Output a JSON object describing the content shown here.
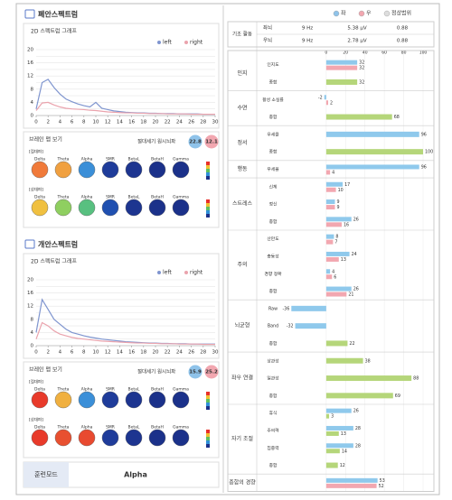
{
  "left": {
    "sections": [
      {
        "title": "폐안스펙트럼",
        "chart": {
          "type": "line",
          "title": "2D 스펙트럼 그래프",
          "x": [
            0,
            1,
            2,
            3,
            4,
            5,
            6,
            7,
            8,
            9,
            10,
            11,
            12,
            13,
            14,
            15,
            16,
            17,
            18,
            19,
            20,
            21,
            22,
            23,
            24,
            25,
            26,
            27,
            28,
            29,
            30
          ],
          "series": [
            {
              "name": "left",
              "color": "#7f95cf",
              "values": [
                2,
                10,
                11,
                8.5,
                6.5,
                5,
                4.2,
                3.5,
                3,
                2.6,
                4,
                2.2,
                1.8,
                1.4,
                1.2,
                1,
                0.9,
                0.8,
                0.8,
                0.7,
                0.7,
                0.6,
                0.6,
                0.6,
                0.5,
                0.5,
                0.5,
                0.5,
                0.4,
                0.4,
                0.4
              ]
            },
            {
              "name": "right",
              "color": "#eaa3ad",
              "values": [
                1.5,
                3.8,
                4,
                3.2,
                2.6,
                2.2,
                2,
                1.9,
                1.8,
                1.6,
                1.5,
                1.3,
                1.1,
                1,
                0.9,
                0.8,
                0.8,
                0.7,
                0.7,
                0.6,
                0.6,
                0.6,
                0.5,
                0.5,
                0.5,
                0.5,
                0.4,
                0.4,
                0.4,
                0.4,
                0.4
              ]
            }
          ],
          "xlim": [
            0,
            30
          ],
          "ylim": [
            0,
            20
          ],
          "xticks": [
            0,
            2,
            4,
            6,
            8,
            10,
            12,
            14,
            16,
            18,
            20,
            22,
            24,
            26,
            28,
            30
          ],
          "yticks": [
            0,
            2,
            4,
            6,
            8,
            10,
            12,
            14,
            16,
            18,
            20
          ],
          "grid": true
        },
        "brain": {
          "title": "브레인 맵 보기",
          "power_title": "절대세기 원시뇌파",
          "power_values": [
            22.8,
            12.1
          ],
          "power_colors": [
            "#8fc3ea",
            "#f2a7b0"
          ],
          "bands": [
            "Delta",
            "Theta",
            "Alpha",
            "SMR",
            "BetaL",
            "BetaH",
            "Gamma"
          ],
          "rows": [
            {
              "label": "[절대파]",
              "colors": [
                "#f07a3a",
                "#f0a040",
                "#3b8fd8",
                "#1f3c9a",
                "#1d3590",
                "#1b318a",
                "#1b318a"
              ]
            },
            {
              "label": "[상대파]",
              "colors": [
                "#f0c040",
                "#8fcf60",
                "#58c080",
                "#2050b0",
                "#1d3590",
                "#1b318a",
                "#1b318a"
              ]
            }
          ]
        }
      },
      {
        "title": "개안스펙트럼",
        "chart": {
          "type": "line",
          "title": "2D 스펙트럼 그래프",
          "x": [
            0,
            1,
            2,
            3,
            4,
            5,
            6,
            7,
            8,
            9,
            10,
            11,
            12,
            13,
            14,
            15,
            16,
            17,
            18,
            19,
            20,
            21,
            22,
            23,
            24,
            25,
            26,
            27,
            28,
            29,
            30
          ],
          "series": [
            {
              "name": "left",
              "color": "#7f95cf",
              "values": [
                4,
                14,
                11,
                8,
                6.5,
                5,
                4,
                3.5,
                3,
                2.6,
                2.3,
                2,
                1.8,
                1.6,
                1.4,
                1.2,
                1.1,
                1,
                0.9,
                0.8,
                0.8,
                0.7,
                0.7,
                0.6,
                0.6,
                0.6,
                0.5,
                0.5,
                0.5,
                0.5,
                0.5
              ]
            },
            {
              "name": "right",
              "color": "#eaa3ad",
              "values": [
                2,
                7,
                6,
                4.5,
                3.5,
                3,
                2.5,
                2.2,
                2,
                1.8,
                1.6,
                1.4,
                1.3,
                1.2,
                1.1,
                1,
                0.9,
                0.8,
                0.8,
                0.7,
                0.7,
                0.6,
                0.6,
                0.6,
                0.5,
                0.5,
                0.5,
                0.5,
                0.4,
                0.4,
                0.4
              ]
            }
          ],
          "xlim": [
            0,
            30
          ],
          "ylim": [
            0,
            20
          ],
          "xticks": [
            0,
            2,
            4,
            6,
            8,
            10,
            12,
            14,
            16,
            18,
            20,
            22,
            24,
            26,
            28,
            30
          ],
          "yticks": [
            0,
            2,
            4,
            6,
            8,
            10,
            12,
            14,
            16,
            18,
            20
          ],
          "grid": true
        },
        "brain": {
          "title": "브레인 맵 보기",
          "power_title": "절대세기 원시뇌파",
          "power_values": [
            15.9,
            25.2
          ],
          "power_colors": [
            "#8fc3ea",
            "#f2a7b0"
          ],
          "bands": [
            "Delta",
            "Theta",
            "Alpha",
            "SMR",
            "BetaL",
            "BetaH",
            "Gamma"
          ],
          "rows": [
            {
              "label": "[절대파]",
              "colors": [
                "#e83a2a",
                "#f0b040",
                "#3b8fd8",
                "#1f3c9a",
                "#1d3590",
                "#1b318a",
                "#1b318a"
              ]
            },
            {
              "label": "[상대파]",
              "colors": [
                "#e83a2a",
                "#e85030",
                "#e84a30",
                "#1f3c9a",
                "#1d3590",
                "#1b318a",
                "#1b318a"
              ]
            }
          ]
        }
      }
    ],
    "mode": {
      "label": "훈련모드",
      "value": "Alpha"
    }
  },
  "right": {
    "legend": [
      {
        "name": "좌",
        "color": "#8fc3ea"
      },
      {
        "name": "우",
        "color": "#f2a7b0"
      },
      {
        "name": "정상범위",
        "color": "#dddddd"
      }
    ],
    "basic": {
      "label": "기초 활동",
      "rows": [
        [
          "좌뇌",
          "9 Hz",
          "5.38 µV",
          "0.88"
        ],
        [
          "우뇌",
          "9 Hz",
          "2.78 µV",
          "0.88"
        ]
      ]
    },
    "bars": {
      "colors": {
        "left": "#8fc9ec",
        "right": "#f2a7b0",
        "total": "#b5d67a"
      },
      "xlim": [
        -40,
        100
      ],
      "xticks": [
        0,
        20,
        40,
        60,
        80,
        100
      ],
      "groups": [
        {
          "label": "인지",
          "rows": [
            {
              "label": "인지도",
              "left": 32,
              "right": 32
            },
            {
              "label": "종합",
              "total": 32
            }
          ]
        },
        {
          "label": "수면",
          "rows": [
            {
              "label": "활성 소실률",
              "left": -2,
              "right": 2
            },
            {
              "label": "종합",
              "total": 68
            }
          ]
        },
        {
          "label": "정서",
          "rows": [
            {
              "label": "우세율",
              "left": 96
            },
            {
              "label": "종합",
              "total": 100
            }
          ]
        },
        {
          "label": "행동",
          "rows": [
            {
              "label": "우세율",
              "left": 96,
              "right": 4
            }
          ]
        },
        {
          "label": "스트레스",
          "rows": [
            {
              "label": "신체",
              "left": 17,
              "right": 10
            },
            {
              "label": "정신",
              "left": 9,
              "right": 9
            },
            {
              "label": "종합",
              "left": 26,
              "right": 16
            }
          ]
        },
        {
          "label": "주의",
          "rows": [
            {
              "label": "산만도",
              "left": 8,
              "right": 7
            },
            {
              "label": "충동성",
              "left": 24,
              "right": 13
            },
            {
              "label": "경향 정확",
              "left": 4,
              "right": 6
            },
            {
              "label": "종합",
              "left": 26,
              "right": 21
            }
          ]
        },
        {
          "label": "뇌균형",
          "rows": [
            {
              "label": "Raw",
              "left": -36
            },
            {
              "label": "Band",
              "left": -32
            },
            {
              "label": "종합",
              "total": 22
            }
          ]
        },
        {
          "label": "좌우 연결",
          "rows": [
            {
              "label": "상관성",
              "total": 38
            },
            {
              "label": "일관성",
              "total": 88
            },
            {
              "label": "종합",
              "total": 69
            }
          ]
        },
        {
          "label": "자기 조절",
          "rows": [
            {
              "label": "휴식",
              "total": 3,
              "left": 26
            },
            {
              "label": "주의력",
              "total": 13,
              "left": 28
            },
            {
              "label": "집중력",
              "total": 14,
              "left": 28
            },
            {
              "label": "종합",
              "total": 12
            }
          ]
        },
        {
          "label": "종합의 경향",
          "rows": [
            {
              "label": "",
              "left": 53,
              "right": 52
            }
          ]
        }
      ]
    }
  }
}
